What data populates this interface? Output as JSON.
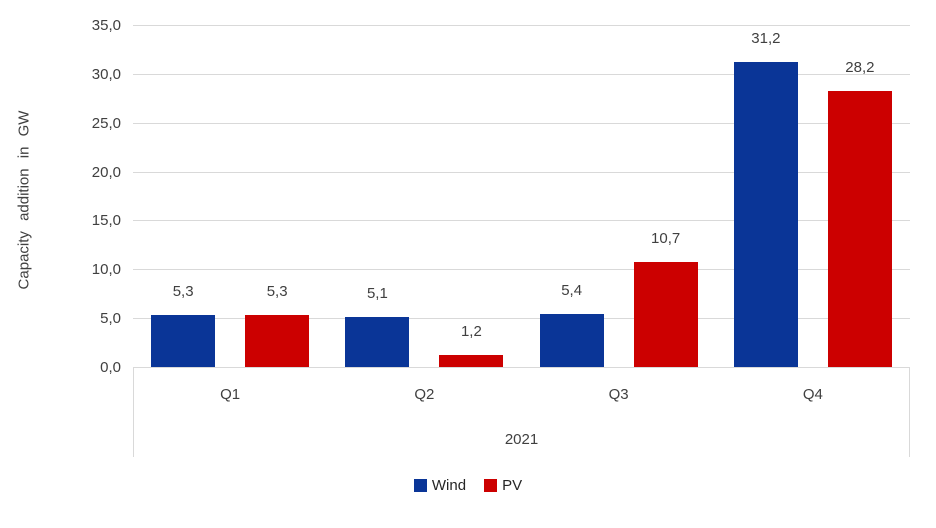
{
  "chart_data": {
    "type": "bar",
    "categories": [
      "Q1",
      "Q2",
      "Q3",
      "Q4"
    ],
    "series": [
      {
        "name": "Wind",
        "color": "#0A3597",
        "values": [
          5.3,
          5.1,
          5.4,
          31.2
        ]
      },
      {
        "name": "PV",
        "color": "#CC0000",
        "values": [
          5.3,
          1.2,
          10.7,
          28.2
        ]
      }
    ],
    "ylabel": "Capacity addition in GW",
    "xlabel": "2021",
    "ylim": [
      0,
      35
    ],
    "ytick_step": 5,
    "decimal_separator": ",",
    "grid": true,
    "legend_position": "bottom",
    "gridline_color": "#D9D9D9",
    "text_color": "#404040"
  }
}
